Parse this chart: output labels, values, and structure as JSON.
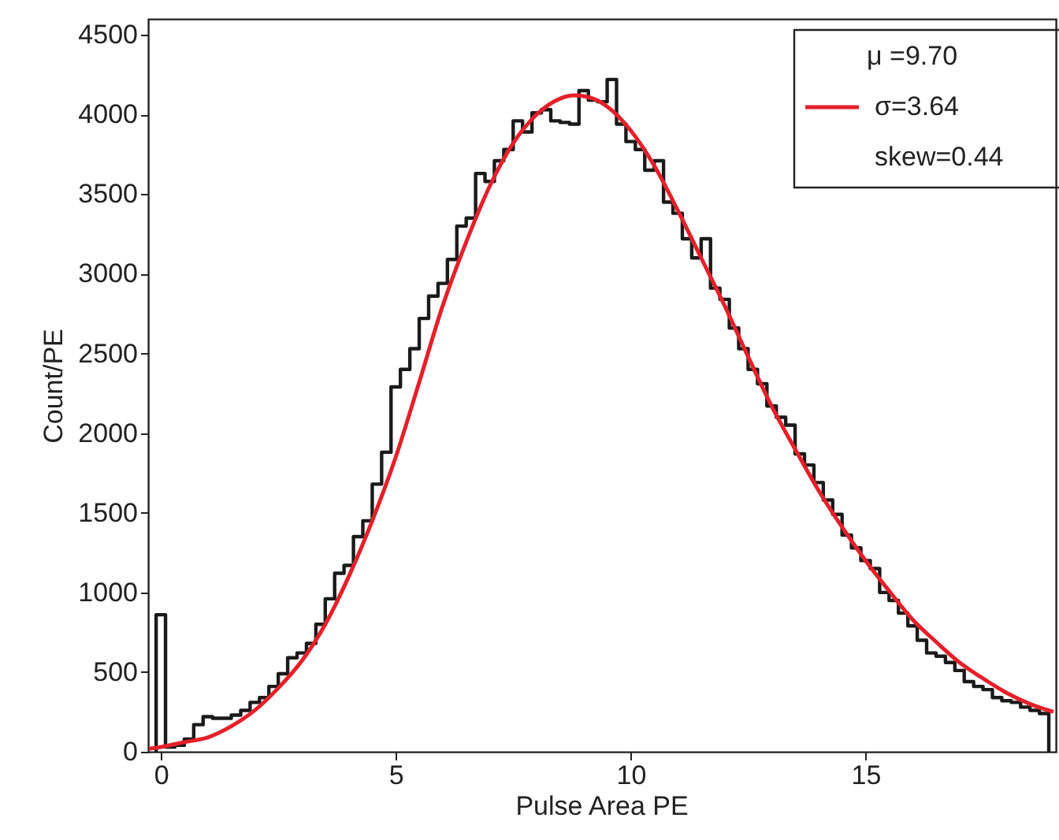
{
  "chart_data": {
    "type": "histogram",
    "xlabel": "Pulse Area PE",
    "ylabel": "Count/PE",
    "color": "#1a1a1a",
    "bins": [
      -0.1,
      0.1,
      0.3,
      0.5,
      0.7,
      0.9,
      1.1,
      1.3,
      1.5,
      1.7,
      1.9,
      2.1,
      2.3,
      2.5,
      2.7,
      2.9,
      3.1,
      3.3,
      3.5,
      3.7,
      3.9,
      4.1,
      4.3,
      4.5,
      4.7,
      4.9,
      5.1,
      5.3,
      5.5,
      5.7,
      5.9,
      6.1,
      6.3,
      6.5,
      6.7,
      6.9,
      7.1,
      7.3,
      7.5,
      7.7,
      7.9,
      8.1,
      8.3,
      8.5,
      8.7,
      8.9,
      9.1,
      9.3,
      9.5,
      9.7,
      9.9,
      10.1,
      10.3,
      10.5,
      10.7,
      10.9,
      11.1,
      11.3,
      11.5,
      11.7,
      11.9,
      12.1,
      12.3,
      12.5,
      12.7,
      12.9,
      13.1,
      13.3,
      13.5,
      13.7,
      13.9,
      14.1,
      14.3,
      14.5,
      14.7,
      14.9,
      15.1,
      15.3,
      15.5,
      15.7,
      15.9,
      16.1,
      16.3,
      16.5,
      16.7,
      16.9,
      17.1,
      17.3,
      17.5,
      17.7,
      17.9,
      18.1,
      18.3,
      18.5,
      18.7,
      18.9
    ],
    "values": [
      860,
      30,
      40,
      80,
      170,
      220,
      210,
      210,
      230,
      260,
      310,
      340,
      410,
      490,
      590,
      620,
      680,
      800,
      960,
      1120,
      1170,
      1350,
      1450,
      1680,
      1880,
      2290,
      2400,
      2530,
      2720,
      2860,
      2940,
      3090,
      3300,
      3350,
      3630,
      3580,
      3710,
      3780,
      3960,
      3890,
      4010,
      4030,
      3960,
      3950,
      3940,
      4150,
      4090,
      4080,
      4220,
      3940,
      3830,
      3780,
      3650,
      3710,
      3450,
      3380,
      3220,
      3100,
      3220,
      2910,
      2840,
      2660,
      2530,
      2400,
      2310,
      2170,
      2100,
      2050,
      1870,
      1800,
      1690,
      1580,
      1490,
      1360,
      1280,
      1200,
      1150,
      1000,
      950,
      870,
      790,
      700,
      620,
      600,
      560,
      510,
      440,
      410,
      390,
      340,
      320,
      310,
      280,
      260,
      240
    ],
    "series": [
      {
        "type": "line",
        "name": "σ=3.64",
        "color": "#e4202a",
        "x": [
          -0.25,
          0,
          0.5,
          1,
          1.5,
          2,
          2.5,
          3,
          3.5,
          4,
          4.5,
          5,
          5.5,
          6,
          6.5,
          7,
          7.5,
          8,
          8.5,
          8.8,
          9.2,
          9.5,
          10,
          10.5,
          11,
          11.5,
          12,
          12.5,
          13,
          13.5,
          14,
          14.5,
          15,
          15.5,
          16,
          16.5,
          17,
          17.5,
          18,
          18.5,
          19
        ],
        "values": [
          20,
          30,
          60,
          90,
          160,
          260,
          400,
          570,
          800,
          1100,
          1450,
          1850,
          2320,
          2800,
          3200,
          3550,
          3820,
          4000,
          4100,
          4120,
          4100,
          4050,
          3900,
          3680,
          3400,
          3100,
          2800,
          2480,
          2170,
          1900,
          1640,
          1410,
          1200,
          1010,
          830,
          690,
          560,
          460,
          370,
          300,
          250
        ]
      }
    ],
    "annotations": [
      "μ =9.70",
      "skew=0.44"
    ],
    "legend": "top right",
    "grid": false,
    "xlim": [
      -0.27,
      19.05
    ],
    "xticks": [
      0,
      5,
      10,
      15
    ],
    "ylim": [
      0,
      4600
    ],
    "yticks": [
      0,
      500,
      1000,
      1500,
      2000,
      2500,
      3000,
      3500,
      4000,
      4500
    ]
  }
}
